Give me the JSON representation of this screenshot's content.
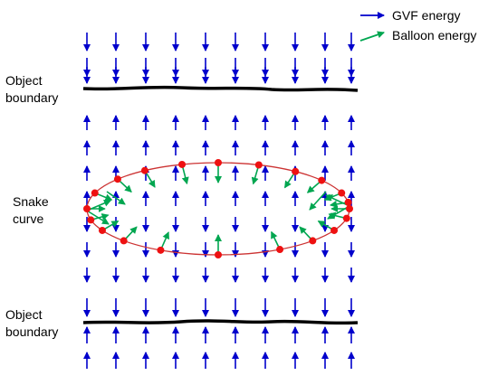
{
  "legend": {
    "gvf_label": "GVF energy",
    "balloon_label": "Balloon energy",
    "gvf_color": "#0000cc",
    "balloon_color": "#00a650"
  },
  "labels": {
    "top_boundary": [
      "Object",
      "boundary"
    ],
    "snake": [
      "Snake",
      "curve"
    ],
    "bottom_boundary": [
      "Object",
      "boundary"
    ]
  },
  "colors": {
    "snake_curve": "#cc3333",
    "control_points": "#ee1111",
    "boundary": "#000000"
  }
}
